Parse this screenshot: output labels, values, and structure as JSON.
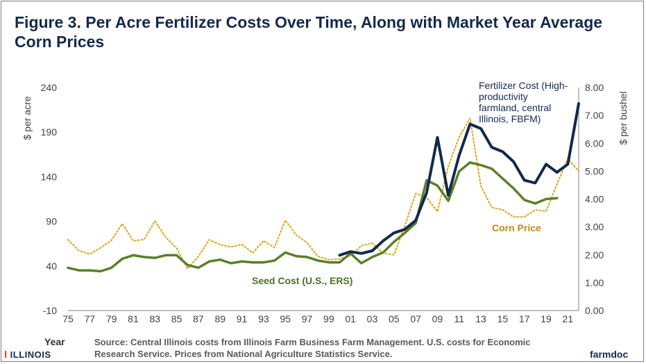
{
  "title": "Figure 3.  Per Acre Fertilizer Costs Over Time, Along with Market Year Average Corn Prices",
  "footer": {
    "year_label": "Year",
    "source": "Source: Central Illinois costs from Illinois Farm Business Farm Management. U.S. costs for Economic Research Service.  Prices from National Agriculture Statistics Service.",
    "logo_text": "ILLINOIS",
    "brand": "farmdoc"
  },
  "chart_data": {
    "type": "line",
    "ylabel": "$ per acre",
    "y2label": "$ per bushel",
    "ylim": [
      -10,
      240
    ],
    "y2lim": [
      0,
      8
    ],
    "xlim": [
      1975,
      2022
    ],
    "y_ticks": [
      -10,
      40,
      90,
      140,
      190,
      240
    ],
    "y2_ticks": [
      "0.00",
      "1.00",
      "2.00",
      "3.00",
      "4.00",
      "5.00",
      "6.00",
      "7.00",
      "8.00"
    ],
    "x_ticks": [
      "75",
      "77",
      "79",
      "81",
      "83",
      "85",
      "87",
      "89",
      "91",
      "93",
      "95",
      "97",
      "99",
      "01",
      "03",
      "05",
      "07",
      "09",
      "11",
      "13",
      "15",
      "17",
      "19",
      "21"
    ],
    "grid": false,
    "series": [
      {
        "name": "Fertilizer Cost (High-productivity farmland, central Illinois, FBFM)",
        "axis": "left",
        "color": "#13294b",
        "style": "solid",
        "x": [
          2000,
          2001,
          2002,
          2003,
          2004,
          2005,
          2006,
          2007,
          2008,
          2009,
          2010,
          2011,
          2012,
          2013,
          2014,
          2015,
          2016,
          2017,
          2018,
          2019,
          2020,
          2021,
          2022
        ],
        "values": [
          52,
          56,
          54,
          57,
          68,
          77,
          81,
          91,
          122,
          184,
          119,
          164,
          199,
          194,
          173,
          168,
          157,
          136,
          133,
          154,
          145,
          154,
          222
        ]
      },
      {
        "name": "Seed Cost (U.S., ERS)",
        "axis": "left",
        "color": "#5b7f2a",
        "style": "solid",
        "x": [
          1975,
          1976,
          1977,
          1978,
          1979,
          1980,
          1981,
          1982,
          1983,
          1984,
          1985,
          1986,
          1987,
          1988,
          1989,
          1990,
          1991,
          1992,
          1993,
          1994,
          1995,
          1996,
          1997,
          1998,
          1999,
          2000,
          2001,
          2002,
          2003,
          2004,
          2005,
          2006,
          2007,
          2008,
          2009,
          2010,
          2011,
          2012,
          2013,
          2014,
          2015,
          2016,
          2017,
          2018,
          2019,
          2020
        ],
        "values": [
          38,
          35,
          35,
          34,
          38,
          48,
          52,
          50,
          49,
          52,
          52,
          41,
          38,
          45,
          47,
          43,
          45,
          44,
          44,
          46,
          55,
          51,
          50,
          46,
          44,
          44,
          54,
          43,
          50,
          55,
          67,
          77,
          88,
          136,
          130,
          113,
          146,
          156,
          153,
          149,
          138,
          127,
          114,
          110,
          115,
          116
        ]
      },
      {
        "name": "Corn Price",
        "axis": "right",
        "color": "#e0a51a",
        "style": "dotted",
        "x": [
          1975,
          1976,
          1977,
          1978,
          1979,
          1980,
          1981,
          1982,
          1983,
          1984,
          1985,
          1986,
          1987,
          1988,
          1989,
          1990,
          1991,
          1992,
          1993,
          1994,
          1995,
          1996,
          1997,
          1998,
          1999,
          2000,
          2001,
          2002,
          2003,
          2004,
          2005,
          2006,
          2007,
          2008,
          2009,
          2010,
          2011,
          2012,
          2013,
          2014,
          2015,
          2016,
          2017,
          2018,
          2019,
          2020,
          2021,
          2022
        ],
        "values": [
          2.54,
          2.15,
          2.02,
          2.25,
          2.52,
          3.11,
          2.5,
          2.55,
          3.21,
          2.63,
          2.23,
          1.5,
          1.94,
          2.54,
          2.36,
          2.28,
          2.37,
          2.07,
          2.5,
          2.26,
          3.24,
          2.71,
          2.43,
          1.94,
          1.82,
          1.85,
          1.97,
          2.32,
          2.42,
          2.06,
          2.0,
          3.04,
          4.2,
          4.06,
          3.55,
          5.18,
          6.22,
          6.89,
          4.46,
          3.7,
          3.61,
          3.36,
          3.36,
          3.61,
          3.56,
          4.53,
          5.45,
          5.0
        ]
      }
    ],
    "annotations": [
      {
        "text": "Fertilizer Cost (High-productivity farmland, central Illinois, FBFM)",
        "color": "#13294b"
      },
      {
        "text": "Corn Price",
        "color": "#c28a10"
      },
      {
        "text": "Seed Cost (U.S., ERS)",
        "color": "#4f6f22"
      }
    ]
  }
}
